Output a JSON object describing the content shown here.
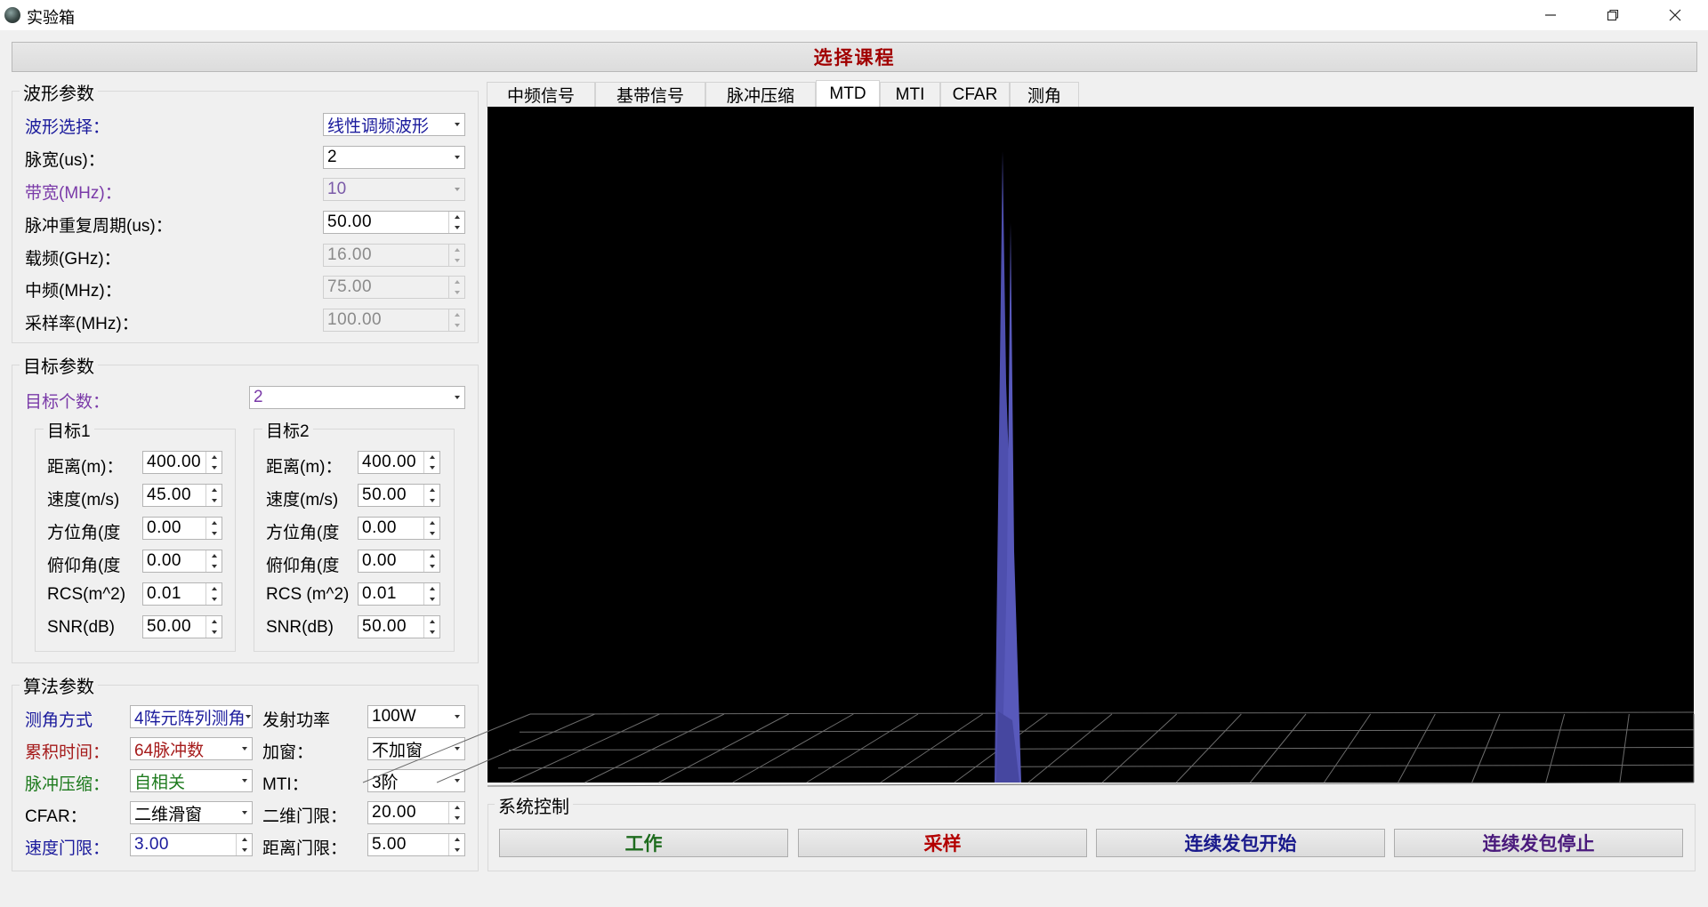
{
  "window": {
    "title": "实验箱",
    "controls": [
      "minimize-icon",
      "restore-icon",
      "close-icon"
    ]
  },
  "course_bar": {
    "label": "选择课程"
  },
  "waveform": {
    "title": "波形参数",
    "type": {
      "label": "波形选择：",
      "value": "线性调频波形"
    },
    "pulse_width": {
      "label": "脉宽(us)：",
      "value": "2"
    },
    "bandwidth": {
      "label": "带宽(MHz)：",
      "value": "10"
    },
    "pri": {
      "label": "脉冲重复周期(us)：",
      "value": "50.00"
    },
    "carrier": {
      "label": "载频(GHz)：",
      "value": "16.00"
    },
    "if_freq": {
      "label": "中频(MHz)：",
      "value": "75.00"
    },
    "sample_rate": {
      "label": "采样率(MHz)：",
      "value": "100.00"
    }
  },
  "targets": {
    "title": "目标参数",
    "count": {
      "label": "目标个数：",
      "value": "2"
    },
    "list": [
      {
        "title": "目标1",
        "range": {
          "label": "距离(m)：",
          "value": "400.00"
        },
        "speed": {
          "label": "速度(m/s)",
          "value": "45.00"
        },
        "azimuth": {
          "label": "方位角(度",
          "value": "0.00"
        },
        "elevation": {
          "label": "俯仰角(度",
          "value": "0.00"
        },
        "rcs": {
          "label": "RCS(m^2)",
          "value": "0.01"
        },
        "snr": {
          "label": "SNR(dB)",
          "value": "50.00"
        }
      },
      {
        "title": "目标2",
        "range": {
          "label": "距离(m)：",
          "value": "400.00"
        },
        "speed": {
          "label": "速度(m/s)",
          "value": "50.00"
        },
        "azimuth": {
          "label": "方位角(度",
          "value": "0.00"
        },
        "elevation": {
          "label": "俯仰角(度",
          "value": "0.00"
        },
        "rcs": {
          "label": "RCS (m^2)",
          "value": "0.01"
        },
        "snr": {
          "label": "SNR(dB)",
          "value": "50.00"
        }
      }
    ]
  },
  "algorithm": {
    "title": "算法参数",
    "angle_method": {
      "label": "测角方式",
      "value": "4阵元阵列测角"
    },
    "tx_power": {
      "label": "发射功率",
      "value": "100W"
    },
    "integration": {
      "label": "累积时间：",
      "value": "64脉冲数"
    },
    "window_fn": {
      "label": "加窗：",
      "value": "不加窗"
    },
    "pulse_comp": {
      "label": "脉冲压缩：",
      "value": "自相关"
    },
    "mti": {
      "label": "MTI：",
      "value": "3阶"
    },
    "cfar": {
      "label": "CFAR：",
      "value": "二维滑窗"
    },
    "cfar_threshold": {
      "label": "二维门限：",
      "value": "20.00"
    },
    "speed_gate": {
      "label": "速度门限：",
      "value": "3.00"
    },
    "range_gate": {
      "label": "距离门限：",
      "value": "5.00"
    }
  },
  "tabs": [
    {
      "label": "中频信号",
      "active": false
    },
    {
      "label": "基带信号",
      "active": false
    },
    {
      "label": "脉冲压缩",
      "active": false
    },
    {
      "label": "MTD",
      "active": true
    },
    {
      "label": "MTI",
      "active": false
    },
    {
      "label": "CFAR",
      "active": false
    },
    {
      "label": "测角",
      "active": false
    }
  ],
  "system_control": {
    "title": "系统控制",
    "buttons": [
      {
        "label": "工作",
        "color": "#1d6b1d"
      },
      {
        "label": "采样",
        "color": "#b30000"
      },
      {
        "label": "连续发包开始",
        "color": "#1a1a8c"
      },
      {
        "label": "连续发包停止",
        "color": "#4a1a7c"
      }
    ]
  },
  "colors": {
    "plot_background": "#000000",
    "peak_color": "#4e4fae",
    "grid_color": "#6b6b6b"
  }
}
